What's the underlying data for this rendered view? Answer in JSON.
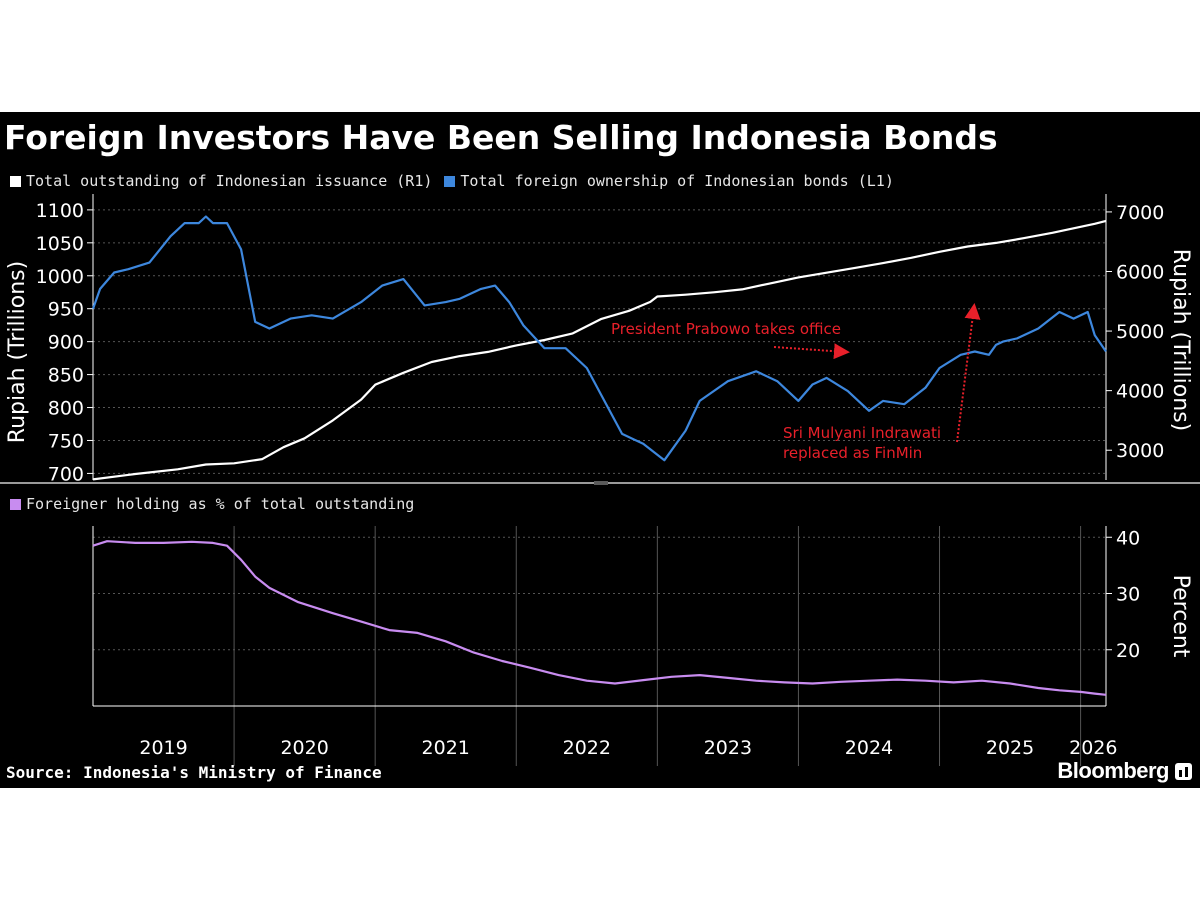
{
  "title": "Foreign Investors Have Been Selling Indonesia Bonds",
  "source": "Source: Indonesia's Ministry of Finance",
  "brand": "Bloomberg",
  "colors": {
    "background": "#000000",
    "outstanding": "#ffffff",
    "foreign": "#3d87dd",
    "share": "#c88cf0",
    "annotation": "#e8202a",
    "grid": "#555555"
  },
  "chart_data": [
    {
      "type": "line",
      "title": "Foreign Investors Have Been Selling Indonesia Bonds",
      "legend_position": "top-left",
      "grid": true,
      "x_range": [
        2019.0,
        2026.18
      ],
      "x_tick_labels": [
        "2019",
        "2020",
        "2021",
        "2022",
        "2023",
        "2024",
        "2025",
        "2026"
      ],
      "axes": {
        "left": {
          "label": "Rupiah (Trillions)",
          "range": [
            690,
            1115
          ],
          "ticks": [
            700,
            750,
            800,
            850,
            900,
            950,
            1000,
            1050,
            1100
          ]
        },
        "right": {
          "label": "Rupiah (Trillions)",
          "range": [
            2500,
            7200
          ],
          "ticks": [
            3000,
            4000,
            5000,
            6000,
            7000
          ]
        }
      },
      "series": [
        {
          "name": "Total outstanding of Indonesian issuance (R1)",
          "axis": "right",
          "x": [
            2019.0,
            2019.3,
            2019.6,
            2019.8,
            2020.0,
            2020.2,
            2020.35,
            2020.5,
            2020.7,
            2020.9,
            2021.0,
            2021.2,
            2021.4,
            2021.6,
            2021.8,
            2022.0,
            2022.2,
            2022.4,
            2022.6,
            2022.8,
            2022.95,
            2023.0,
            2023.2,
            2023.4,
            2023.6,
            2023.8,
            2024.0,
            2024.2,
            2024.4,
            2024.6,
            2024.8,
            2025.0,
            2025.2,
            2025.4,
            2025.6,
            2025.8,
            2026.0,
            2026.1,
            2026.18
          ],
          "values": [
            2510,
            2600,
            2680,
            2760,
            2780,
            2850,
            3050,
            3200,
            3500,
            3850,
            4100,
            4300,
            4480,
            4580,
            4650,
            4760,
            4850,
            4960,
            5200,
            5340,
            5490,
            5580,
            5610,
            5650,
            5700,
            5800,
            5900,
            5980,
            6060,
            6140,
            6230,
            6330,
            6420,
            6480,
            6560,
            6650,
            6750,
            6800,
            6850
          ]
        },
        {
          "name": "Total foreign ownership of Indonesian bonds (L1)",
          "axis": "left",
          "x": [
            2019.0,
            2019.05,
            2019.15,
            2019.25,
            2019.4,
            2019.55,
            2019.65,
            2019.75,
            2019.8,
            2019.85,
            2019.95,
            2020.05,
            2020.15,
            2020.25,
            2020.4,
            2020.55,
            2020.7,
            2020.9,
            2021.05,
            2021.2,
            2021.35,
            2021.5,
            2021.6,
            2021.75,
            2021.85,
            2021.95,
            2022.05,
            2022.2,
            2022.35,
            2022.5,
            2022.6,
            2022.75,
            2022.9,
            2023.05,
            2023.2,
            2023.3,
            2023.5,
            2023.7,
            2023.85,
            2024.0,
            2024.1,
            2024.2,
            2024.35,
            2024.5,
            2024.6,
            2024.75,
            2024.9,
            2025.0,
            2025.15,
            2025.25,
            2025.35,
            2025.4,
            2025.45,
            2025.55,
            2025.7,
            2025.85,
            2025.95,
            2026.05,
            2026.1,
            2026.18
          ],
          "values": [
            950,
            980,
            1005,
            1010,
            1020,
            1060,
            1080,
            1080,
            1090,
            1080,
            1080,
            1040,
            930,
            920,
            935,
            940,
            935,
            960,
            985,
            995,
            955,
            960,
            965,
            980,
            985,
            960,
            925,
            890,
            890,
            860,
            820,
            760,
            745,
            720,
            765,
            810,
            840,
            855,
            840,
            810,
            835,
            845,
            825,
            795,
            810,
            805,
            830,
            860,
            880,
            885,
            880,
            895,
            900,
            905,
            920,
            945,
            935,
            945,
            910,
            885
          ]
        }
      ],
      "annotations": [
        {
          "text": "President Prabowo takes office",
          "color": "#e8202a"
        },
        {
          "text": "Sri Mulyani Indrawati",
          "color": "#e8202a"
        },
        {
          "text": "replaced as FinMin",
          "color": "#e8202a"
        }
      ]
    },
    {
      "type": "line",
      "legend_position": "top-left",
      "grid": true,
      "x_range": [
        2019.0,
        2026.18
      ],
      "x_tick_labels": [
        "2019",
        "2020",
        "2021",
        "2022",
        "2023",
        "2024",
        "2025",
        "2026"
      ],
      "axes": {
        "right": {
          "label": "Percent",
          "range": [
            10,
            42
          ],
          "ticks": [
            20,
            30,
            40
          ]
        }
      },
      "series": [
        {
          "name": "Foreigner holding as % of total outstanding",
          "axis": "right",
          "x": [
            2019.0,
            2019.1,
            2019.3,
            2019.5,
            2019.7,
            2019.85,
            2019.95,
            2020.05,
            2020.15,
            2020.25,
            2020.45,
            2020.7,
            2020.9,
            2021.1,
            2021.3,
            2021.5,
            2021.7,
            2021.9,
            2022.1,
            2022.3,
            2022.5,
            2022.7,
            2022.9,
            2023.1,
            2023.3,
            2023.5,
            2023.7,
            2023.9,
            2024.1,
            2024.3,
            2024.5,
            2024.7,
            2024.9,
            2025.1,
            2025.3,
            2025.5,
            2025.7,
            2025.85,
            2026.0,
            2026.1,
            2026.18
          ],
          "values": [
            38.5,
            39.3,
            39.0,
            39.0,
            39.2,
            39.0,
            38.5,
            36.0,
            33.0,
            31.0,
            28.5,
            26.5,
            25.0,
            23.5,
            23.0,
            21.5,
            19.5,
            18.0,
            16.8,
            15.5,
            14.5,
            14.0,
            14.6,
            15.2,
            15.5,
            15.0,
            14.5,
            14.2,
            14.0,
            14.3,
            14.5,
            14.7,
            14.5,
            14.2,
            14.5,
            14.0,
            13.2,
            12.8,
            12.5,
            12.2,
            12.0
          ]
        }
      ]
    }
  ]
}
